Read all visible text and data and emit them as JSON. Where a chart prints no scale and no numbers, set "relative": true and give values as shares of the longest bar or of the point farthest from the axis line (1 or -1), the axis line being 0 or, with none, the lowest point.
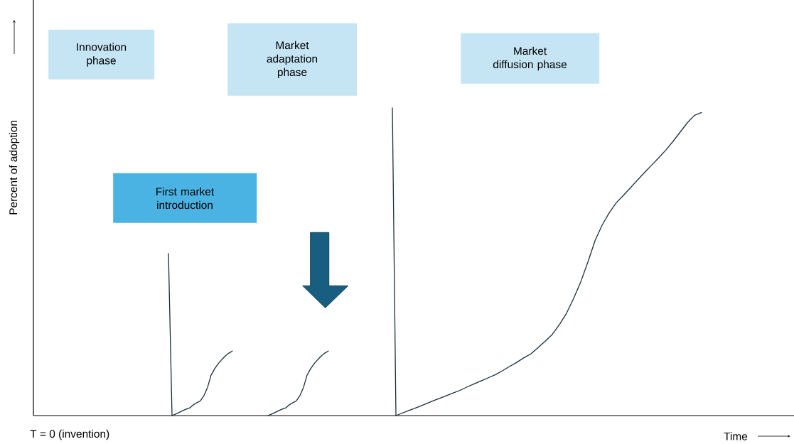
{
  "chart_data": {
    "type": "line",
    "relative": true,
    "marker": "none",
    "xlabel": "Time",
    "ylabel": "Percent  of adoption",
    "annotations": [
      "Innovation phase",
      "Market adaptation phase",
      "Market diffusion phase",
      "First market introduction",
      "T = 0 (invention)"
    ],
    "categories": [
      null,
      null,
      null,
      null,
      null,
      null,
      null,
      null,
      null,
      null,
      null,
      null,
      null,
      null,
      null,
      null,
      null,
      null,
      null,
      null,
      null,
      null,
      null,
      null,
      null,
      null,
      null,
      null,
      null,
      null,
      null,
      null,
      null,
      null,
      null,
      null,
      null,
      null,
      null,
      null,
      null,
      null,
      null,
      null,
      null,
      null,
      null,
      null,
      null,
      null,
      null,
      null,
      null,
      null,
      null,
      null,
      null,
      null,
      null,
      null,
      null,
      null,
      null,
      null,
      null,
      null,
      null,
      null,
      null,
      null,
      null,
      null,
      null,
      null,
      null,
      null,
      null,
      null,
      null,
      null,
      null,
      null,
      null,
      null,
      null,
      null,
      null,
      null,
      null,
      null,
      null,
      null,
      null,
      null,
      null,
      null,
      null,
      null,
      null,
      null,
      null,
      null,
      null,
      null,
      null,
      null,
      null,
      null,
      null,
      null,
      null,
      null,
      null,
      null,
      null,
      null,
      null,
      null,
      null,
      null,
      null,
      null,
      null,
      null,
      null,
      null,
      null,
      null,
      null,
      null,
      null,
      null,
      null,
      null,
      null,
      null,
      null,
      null,
      null,
      null,
      null,
      null,
      null,
      null,
      null,
      null,
      null,
      null,
      null,
      null,
      null,
      null,
      null,
      null,
      null,
      null,
      null,
      null,
      null,
      null,
      null,
      null,
      null,
      null,
      null,
      null,
      null,
      null,
      null,
      null,
      null,
      null,
      null,
      null,
      null,
      null,
      null,
      null,
      null,
      null,
      null,
      null,
      null,
      null,
      null,
      null,
      null,
      null,
      null,
      null,
      null,
      null,
      null,
      null,
      null,
      null,
      null,
      null,
      null,
      null,
      null,
      null,
      null,
      null,
      null,
      null,
      null,
      null,
      null,
      null,
      null,
      null,
      null,
      null
    ],
    "series": [
      {
        "color": "#1b2e3c",
        "values": [
          null,
          null,
          null,
          null,
          null,
          null,
          null,
          null,
          null,
          null,
          null,
          null,
          null,
          null,
          null,
          null,
          null,
          null,
          null,
          null,
          null,
          null,
          null,
          null,
          null,
          null,
          null,
          null,
          null,
          null,
          null,
          null,
          null,
          null,
          null,
          null,
          null,
          null,
          0.527,
          0,
          0.005,
          0.01,
          0.016,
          0.021,
          0.025,
          0.035,
          0.042,
          0.048,
          0.065,
          0.092,
          0.132,
          0.152,
          0.169,
          0.182,
          0.194,
          0.203,
          0.21,
          null,
          null,
          null,
          null,
          null,
          null,
          null,
          null,
          null,
          null,
          null,
          null,
          null,
          null,
          null,
          null,
          null,
          null,
          null,
          null,
          null,
          null,
          null,
          null,
          null,
          null,
          null,
          null,
          null,
          null,
          null,
          null,
          null,
          null,
          null,
          null,
          null,
          null,
          null,
          null,
          null,
          null,
          null,
          null,
          null,
          null,
          null,
          null,
          null,
          null,
          null,
          null,
          null,
          null,
          null,
          null,
          null,
          null,
          null,
          null,
          null,
          null,
          null,
          null,
          null,
          null,
          null,
          null,
          null,
          null,
          null,
          null,
          null,
          null,
          null,
          null,
          null,
          null,
          null,
          null,
          null,
          null,
          null,
          null,
          null,
          null,
          null,
          null,
          null,
          null,
          null,
          null,
          null,
          null,
          null,
          null,
          null,
          null,
          null,
          null,
          null,
          null,
          null,
          null,
          null,
          null,
          null,
          null,
          null,
          null,
          null,
          null,
          null,
          null,
          null,
          null,
          null,
          null,
          null,
          null,
          null,
          null,
          null,
          null,
          null,
          null,
          null,
          null,
          null,
          null,
          null,
          null,
          null,
          null,
          null,
          null,
          null,
          null,
          null,
          null,
          null,
          null,
          null,
          null,
          null,
          null,
          null,
          null,
          null,
          null,
          null,
          null,
          null,
          null,
          null,
          null,
          null
        ]
      },
      {
        "color": "#1b2e3c",
        "values": [
          null,
          null,
          null,
          null,
          null,
          null,
          null,
          null,
          null,
          null,
          null,
          null,
          null,
          null,
          null,
          null,
          null,
          null,
          null,
          null,
          null,
          null,
          null,
          null,
          null,
          null,
          null,
          null,
          null,
          null,
          null,
          null,
          null,
          null,
          null,
          null,
          null,
          null,
          null,
          null,
          null,
          null,
          null,
          null,
          null,
          null,
          null,
          null,
          null,
          null,
          null,
          null,
          null,
          null,
          null,
          null,
          null,
          null,
          null,
          null,
          null,
          null,
          null,
          null,
          null,
          null,
          0,
          0.005,
          0.01,
          0.016,
          0.021,
          0.025,
          0.035,
          0.042,
          0.048,
          0.065,
          0.092,
          0.132,
          0.152,
          0.169,
          0.182,
          0.194,
          0.203,
          0.21,
          null,
          null,
          null,
          null,
          null,
          null,
          null,
          null,
          null,
          null,
          null,
          null,
          null,
          null,
          null,
          null,
          null,
          null,
          null,
          null,
          null,
          null,
          null,
          null,
          null,
          null,
          null,
          null,
          null,
          null,
          null,
          null,
          null,
          null,
          null,
          null,
          null,
          null,
          null,
          null,
          null,
          null,
          null,
          null,
          null,
          null,
          null,
          null,
          null,
          null,
          null,
          null,
          null,
          null,
          null,
          null,
          null,
          null,
          null,
          null,
          null,
          null,
          null,
          null,
          null,
          null,
          null,
          null,
          null,
          null,
          null,
          null,
          null,
          null,
          null,
          null,
          null,
          null,
          null,
          null,
          null,
          null,
          null,
          null,
          null,
          null,
          null,
          null,
          null,
          null,
          null,
          null,
          null,
          null,
          null,
          null,
          null,
          null,
          null,
          null,
          null,
          null,
          null,
          null,
          null,
          null,
          null,
          null,
          null,
          null,
          null,
          null,
          null,
          null,
          null,
          null,
          null,
          null,
          null,
          null,
          null,
          null,
          null,
          null,
          null,
          null,
          null,
          null,
          null,
          null
        ]
      },
      {
        "color": "#1b2e3c",
        "values": [
          null,
          null,
          null,
          null,
          null,
          null,
          null,
          null,
          null,
          null,
          null,
          null,
          null,
          null,
          null,
          null,
          null,
          null,
          null,
          null,
          null,
          null,
          null,
          null,
          null,
          null,
          null,
          null,
          null,
          null,
          null,
          null,
          null,
          null,
          null,
          null,
          null,
          null,
          null,
          null,
          null,
          null,
          null,
          null,
          null,
          null,
          null,
          null,
          null,
          null,
          null,
          null,
          null,
          null,
          null,
          null,
          null,
          null,
          null,
          null,
          null,
          null,
          null,
          null,
          null,
          null,
          null,
          null,
          null,
          null,
          null,
          null,
          null,
          null,
          null,
          null,
          null,
          null,
          null,
          null,
          null,
          null,
          null,
          null,
          null,
          null,
          null,
          null,
          null,
          null,
          null,
          null,
          null,
          null,
          null,
          null,
          null,
          null,
          null,
          null,
          null,
          1,
          0,
          null,
          0.009,
          null,
          0.018,
          null,
          0.027,
          null,
          0.036,
          null,
          0.046,
          null,
          0.055,
          null,
          0.064,
          null,
          0.073,
          null,
          0.082,
          null,
          0.093,
          null,
          0.103,
          null,
          0.113,
          null,
          0.123,
          null,
          0.133,
          null,
          0.146,
          null,
          0.16,
          null,
          0.173,
          null,
          0.188,
          null,
          0.201,
          null,
          0.221,
          null,
          0.242,
          null,
          0.264,
          null,
          0.296,
          null,
          0.333,
          null,
          0.381,
          null,
          0.435,
          null,
          0.499,
          null,
          0.568,
          null,
          0.619,
          null,
          0.659,
          null,
          0.692,
          null,
          0.716,
          null,
          0.741,
          null,
          0.766,
          null,
          0.791,
          null,
          0.815,
          null,
          0.839,
          null,
          0.864,
          null,
          0.892,
          null,
          0.922,
          null,
          0.952,
          null,
          0.976,
          null,
          0.985,
          null,
          null,
          null,
          null,
          null,
          null,
          null,
          null,
          null,
          null,
          null,
          null,
          null,
          null,
          null,
          null,
          null,
          null,
          null,
          null,
          null,
          null,
          null,
          null,
          null
        ]
      }
    ]
  }
}
